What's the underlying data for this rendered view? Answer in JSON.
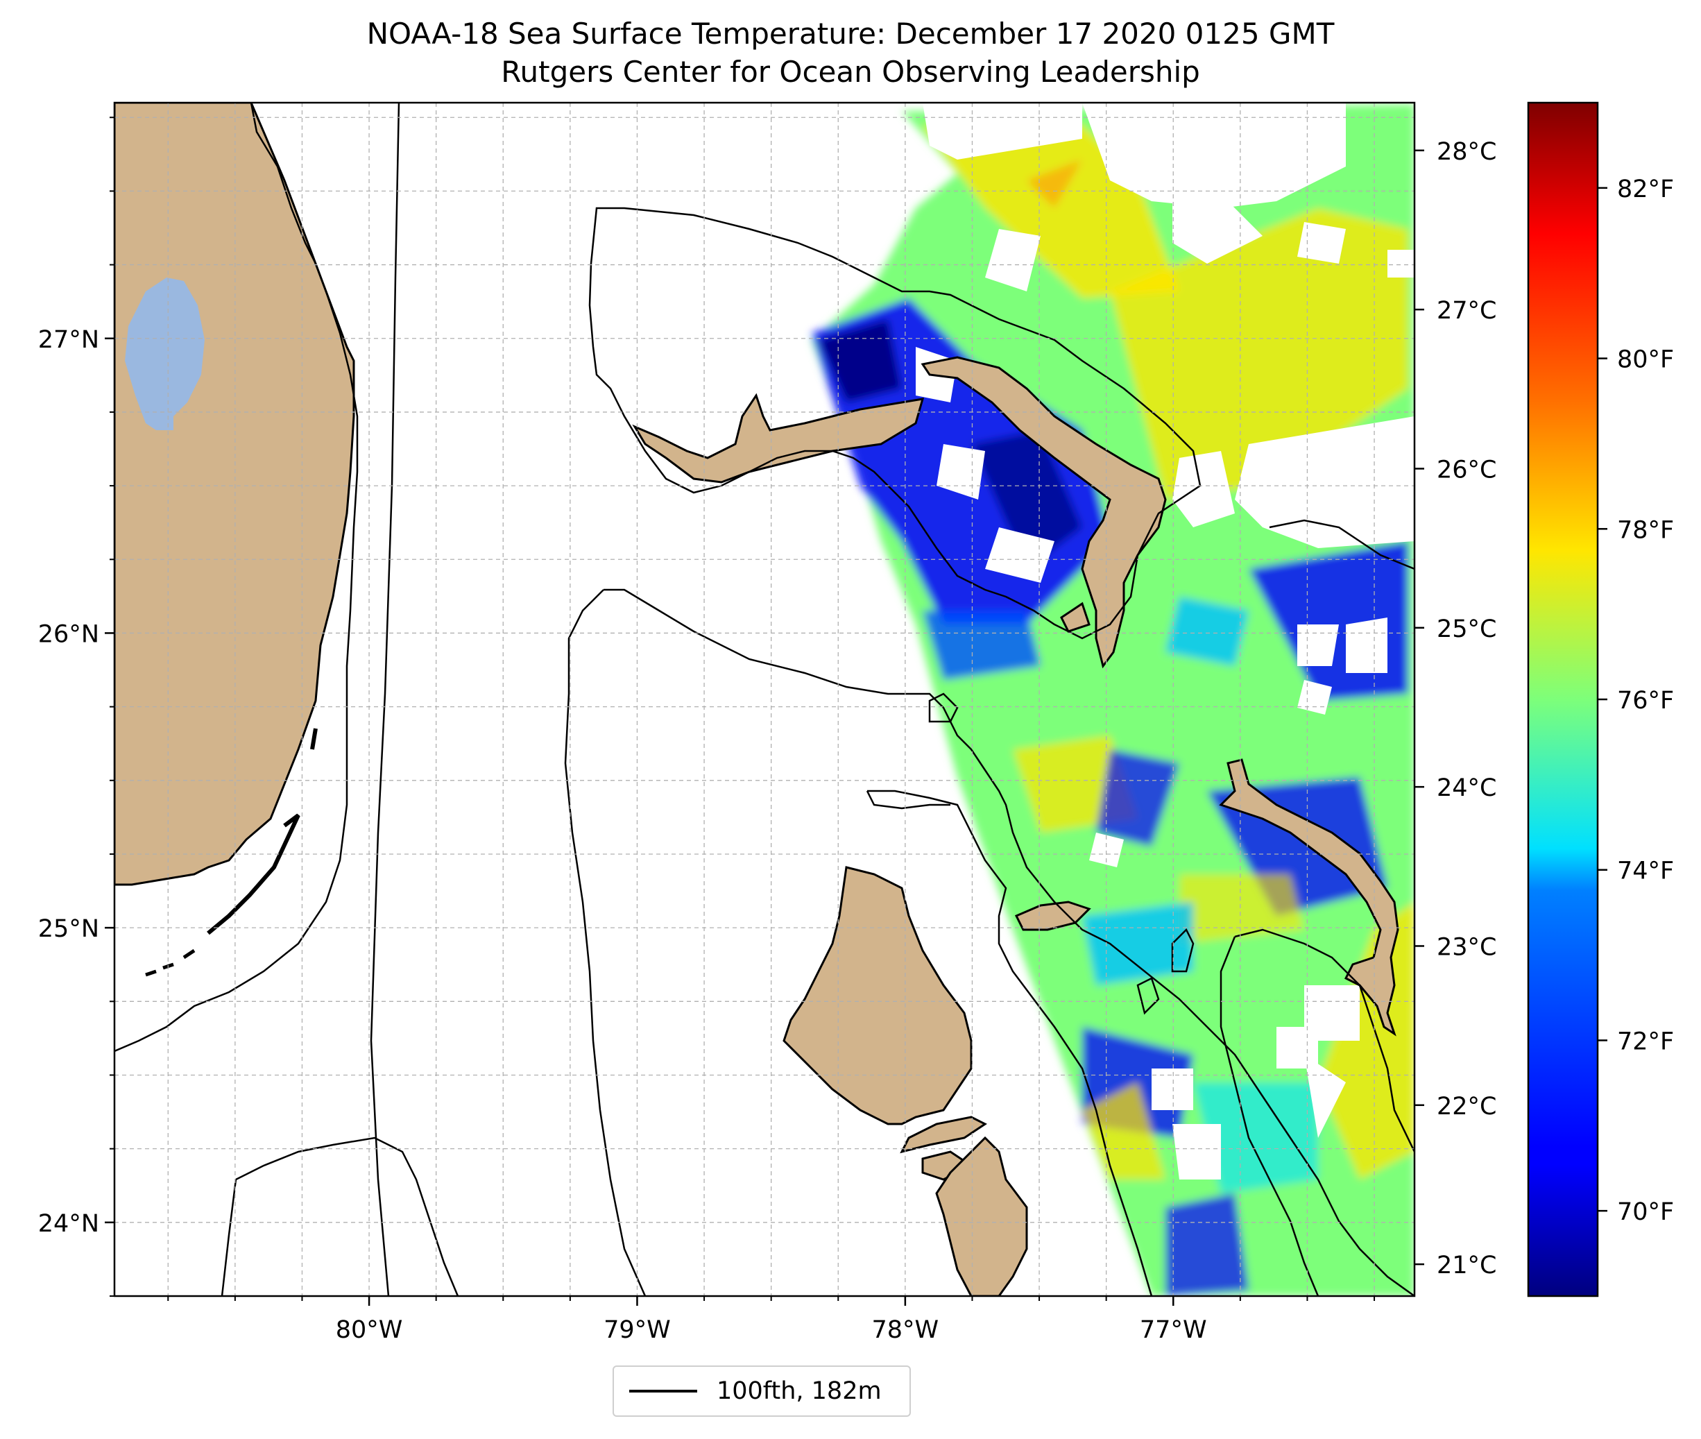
{
  "title": "NOAA-18 Sea Surface Temperature: December 17 2020 0125 GMT",
  "subtitle": "Rutgers Center for Ocean Observing Leadership",
  "colors": {
    "land": "#d2b48c",
    "lake": "#9ab8e0",
    "grid": "#b0b0b0",
    "contour": "#000000",
    "colormap": "jet"
  },
  "map": {
    "lon_min": -80.95,
    "lon_max": -76.1,
    "lat_min": 23.75,
    "lat_max": 27.8,
    "lat_ticks": [
      {
        "value": 24,
        "label": "24°N"
      },
      {
        "value": 25,
        "label": "25°N"
      },
      {
        "value": 26,
        "label": "26°N"
      },
      {
        "value": 27,
        "label": "27°N"
      }
    ],
    "lon_ticks": [
      {
        "value": -80,
        "label": "80°W"
      },
      {
        "value": -79,
        "label": "79°W"
      },
      {
        "value": -78,
        "label": "78°W"
      },
      {
        "value": -77,
        "label": "77°W"
      }
    ],
    "right_temp_axis": [
      {
        "value": 21,
        "label": "21°C"
      },
      {
        "value": 22,
        "label": "22°C"
      },
      {
        "value": 23,
        "label": "23°C"
      },
      {
        "value": 24,
        "label": "24°C"
      },
      {
        "value": 25,
        "label": "25°C"
      },
      {
        "value": 26,
        "label": "26°C"
      },
      {
        "value": 27,
        "label": "27°C"
      },
      {
        "value": 28,
        "label": "28°C"
      }
    ],
    "right_axis_range_c": [
      20.8,
      28.3
    ]
  },
  "colorbar": {
    "range_f": [
      69.0,
      83.0
    ],
    "ticks": [
      {
        "value": 70,
        "label": "70°F"
      },
      {
        "value": 72,
        "label": "72°F"
      },
      {
        "value": 74,
        "label": "74°F"
      },
      {
        "value": 76,
        "label": "76°F"
      },
      {
        "value": 78,
        "label": "78°F"
      },
      {
        "value": 80,
        "label": "80°F"
      },
      {
        "value": 82,
        "label": "82°F"
      }
    ]
  },
  "legend": {
    "label": "100fth, 182m"
  }
}
